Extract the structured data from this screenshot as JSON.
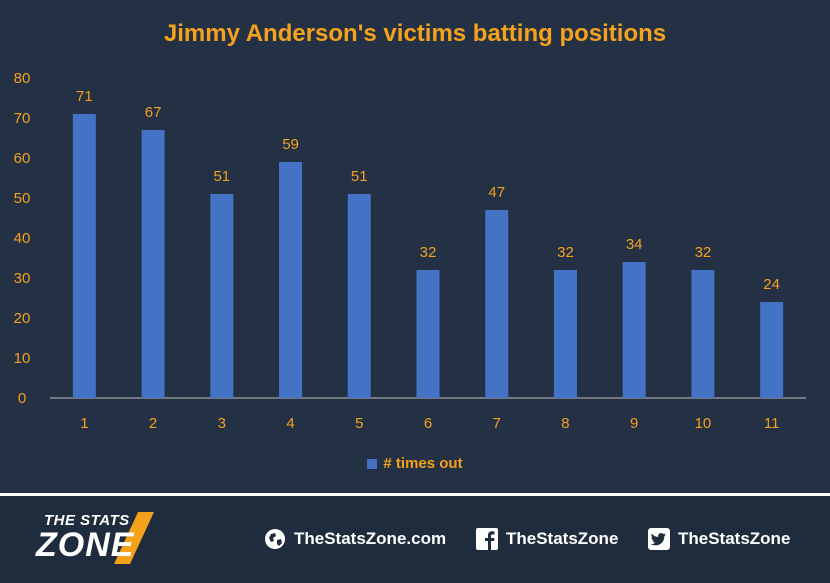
{
  "chart_data": {
    "type": "bar",
    "title": "Jimmy Anderson's victims batting positions",
    "categories": [
      "1",
      "2",
      "3",
      "4",
      "5",
      "6",
      "7",
      "8",
      "9",
      "10",
      "11"
    ],
    "series": [
      {
        "name": "# times out",
        "values": [
          71,
          67,
          51,
          59,
          51,
          32,
          47,
          32,
          34,
          32,
          24
        ]
      }
    ],
    "y_ticks": [
      "0",
      "10",
      "20",
      "30",
      "40",
      "50",
      "60",
      "70",
      "80"
    ],
    "ylim": [
      0,
      80
    ],
    "grid": false,
    "legend_position": "bottom",
    "colors": {
      "bar": "#4472c4",
      "text": "#f4a11c",
      "background": "#243145",
      "axis": "#bfbfbf"
    }
  },
  "footer": {
    "logo_line1": "THE STATS",
    "logo_line2": "ZONE",
    "website": "TheStatsZone.com",
    "facebook": "TheStatsZone",
    "twitter": "TheStatsZone",
    "icons": [
      "globe-icon",
      "facebook-icon",
      "twitter-icon"
    ]
  }
}
